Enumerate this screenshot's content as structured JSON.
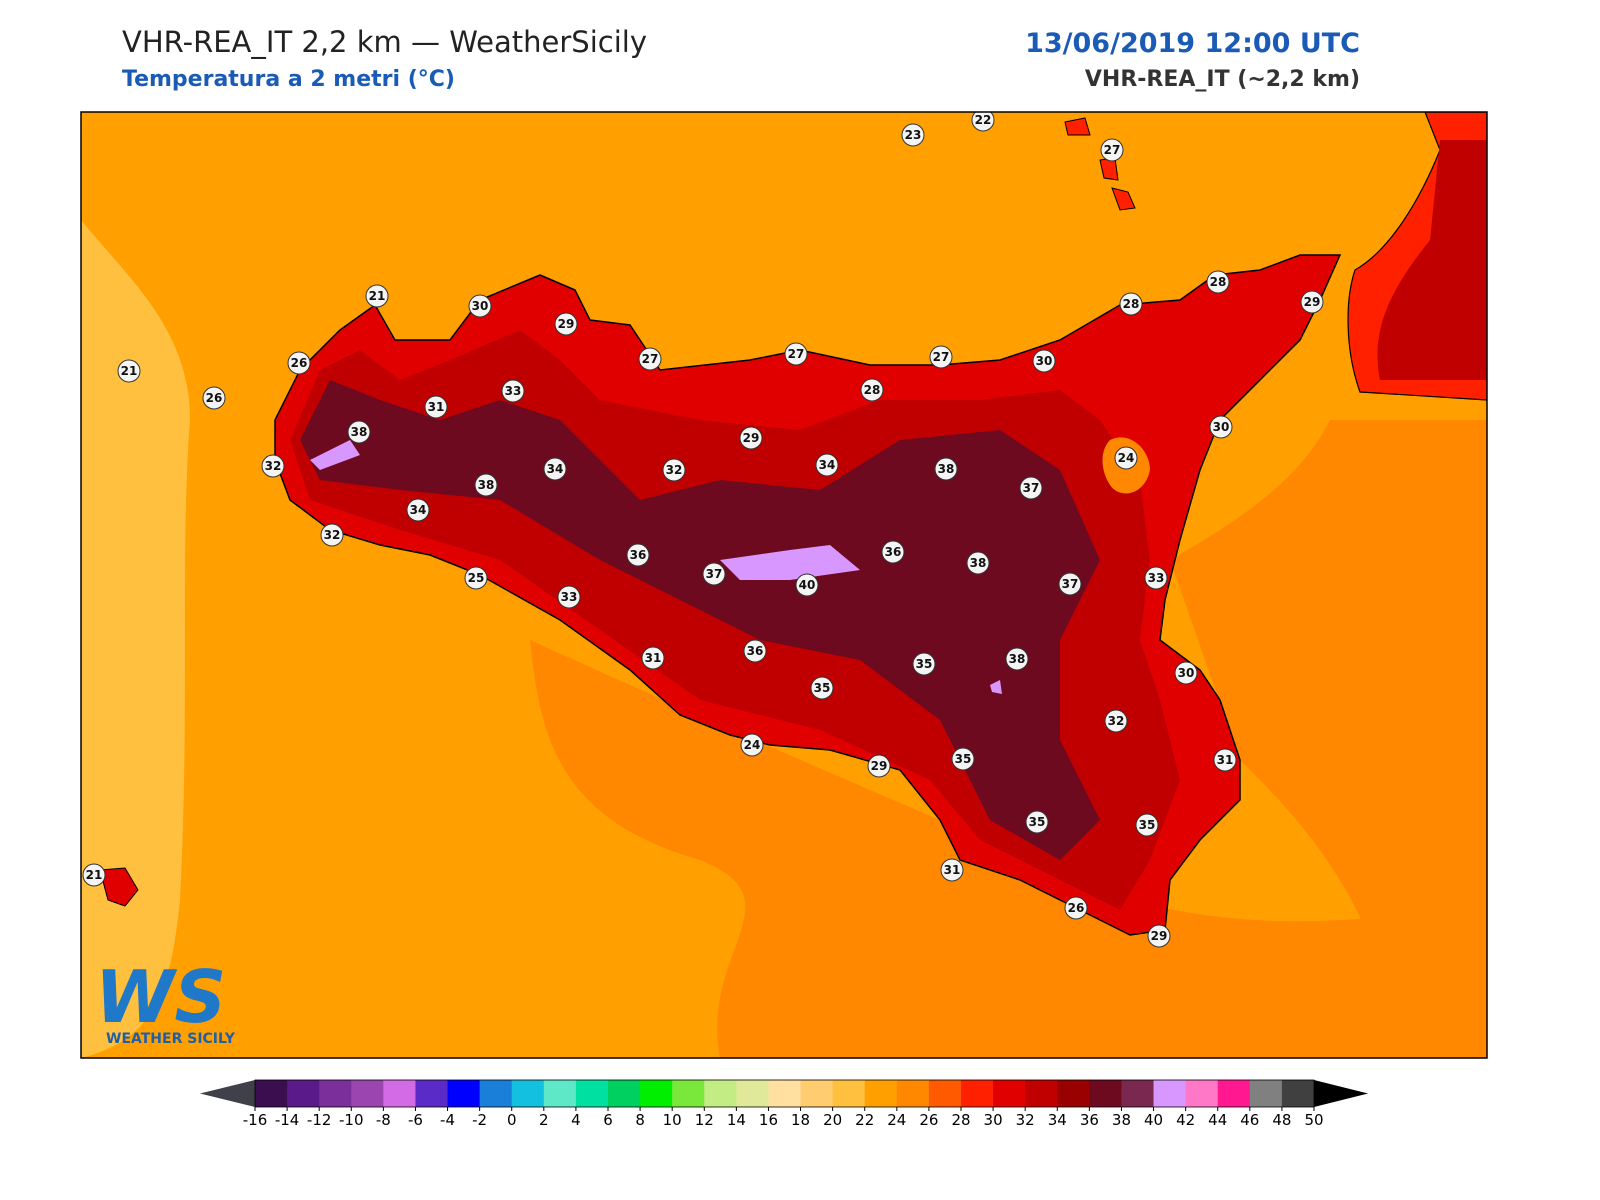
{
  "header": {
    "title": "VHR-REA_IT 2,2 km — WeatherSicily",
    "subtitle": "Temperatura a 2 metri (°C)",
    "datetime": "13/06/2019 12:00 UTC",
    "model": "VHR-REA_IT (~2,2 km)"
  },
  "map": {
    "station_values": [
      23,
      22,
      27,
      21,
      30,
      29,
      27,
      27,
      27,
      30,
      28,
      28,
      29,
      21,
      26,
      26,
      33,
      31,
      38,
      28,
      29,
      30,
      24,
      32,
      34,
      32,
      34,
      38,
      37,
      38,
      34,
      32,
      36,
      36,
      38,
      37,
      40,
      37,
      33,
      25,
      33,
      31,
      36,
      35,
      35,
      38,
      30,
      32,
      24,
      29,
      35,
      31,
      35,
      35,
      31,
      21,
      26,
      29
    ]
  },
  "colorbar": {
    "ticks": [
      -16,
      -14,
      -12,
      -10,
      -8,
      -6,
      -4,
      -2,
      0,
      2,
      4,
      6,
      8,
      10,
      12,
      14,
      16,
      18,
      20,
      22,
      24,
      26,
      28,
      30,
      32,
      34,
      36,
      38,
      40,
      42,
      44,
      46,
      48,
      50
    ],
    "colors": [
      "#3b0f4f",
      "#5a1a8a",
      "#7b2f9a",
      "#9b45b0",
      "#d46be6",
      "#5b2bc8",
      "#0000ff",
      "#1a7fd9",
      "#14c0e0",
      "#5fe8c8",
      "#00e0a0",
      "#00d060",
      "#00ee00",
      "#7ae83a",
      "#c4ec84",
      "#e0e89a",
      "#ffe0a0",
      "#ffcc70",
      "#ffc040",
      "#ffa000",
      "#ff8800",
      "#ff5a00",
      "#ff2000",
      "#e00000",
      "#c00000",
      "#990000",
      "#6e0a20",
      "#7a2850",
      "#d896ff",
      "#ff78c8",
      "#ff1890",
      "#808080",
      "#404040"
    ],
    "under_color": "#40404a",
    "over_color": "#000000"
  },
  "logo": {
    "mark": "WS",
    "name": "WEATHER SICILY"
  }
}
